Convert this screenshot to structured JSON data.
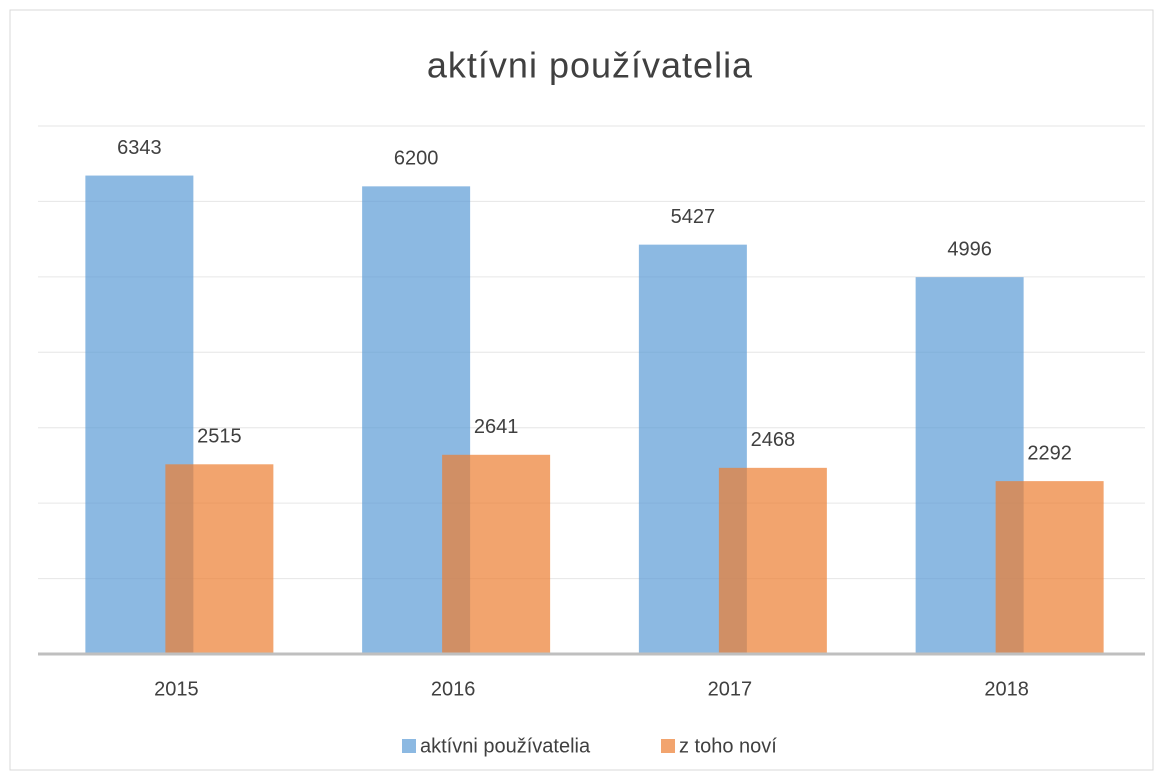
{
  "chart_data": {
    "type": "bar",
    "title": "aktívni používatelia",
    "categories": [
      "2015",
      "2016",
      "2017",
      "2018"
    ],
    "series": [
      {
        "name": "aktívni používatelia",
        "color": "#5b9bd5",
        "values": [
          6343,
          6200,
          5427,
          4996
        ]
      },
      {
        "name": "z toho noví",
        "color": "#ed7d31",
        "values": [
          2515,
          2641,
          2468,
          2292
        ]
      }
    ],
    "ylim": [
      0,
      7000
    ],
    "yticks": [
      0,
      1000,
      2000,
      3000,
      4000,
      5000,
      6000,
      7000
    ],
    "grid": true,
    "legend": "bottom"
  }
}
